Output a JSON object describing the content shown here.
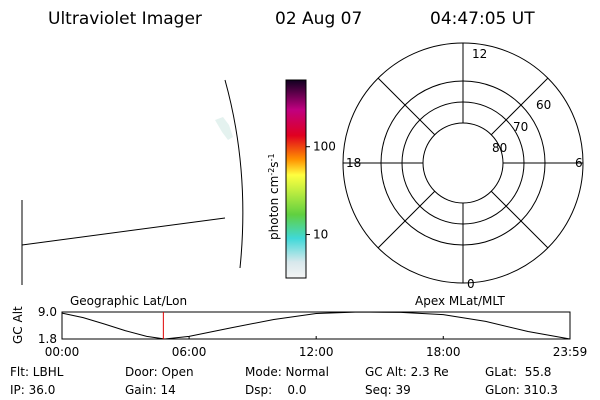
{
  "header": {
    "title": "Ultraviolet Imager",
    "date": "02 Aug 07",
    "time": "04:47:05 UT"
  },
  "colorbar": {
    "label": [
      "photon cm",
      "-2",
      "s",
      "-1"
    ],
    "lim": [
      3.2,
      575
    ],
    "ticks": [
      10,
      100
    ],
    "log": true
  },
  "polar": {
    "hour_labels": [
      "12",
      "18",
      "6",
      "0"
    ],
    "lat_labels": [
      "60",
      "70",
      "80"
    ]
  },
  "orbit": {
    "left_label": "Geographic Lat/Lon",
    "right_label": "Apex MLat/MLT",
    "y_label": "GC Alt",
    "xlim": [
      0,
      23.983
    ],
    "ylim": [
      1.8,
      9.0
    ],
    "yticks": [
      {
        "value": 9.0,
        "label": "9.0"
      },
      {
        "value": 1.8,
        "label": "1.8"
      }
    ],
    "xticks": [
      {
        "value": 0,
        "label": "00:00"
      },
      {
        "value": 6,
        "label": "06:00"
      },
      {
        "value": 12,
        "label": "12:00"
      },
      {
        "value": 18,
        "label": "18:00"
      },
      {
        "value": 23.983,
        "label": "23:59"
      }
    ],
    "current_time": 4.785,
    "x": [
      0,
      1,
      2,
      3,
      4,
      4.85,
      6,
      8,
      10,
      12,
      14,
      16,
      18,
      20,
      22,
      23.983
    ],
    "altitude": [
      8.7,
      7.5,
      5.8,
      4.0,
      2.5,
      1.8,
      2.5,
      4.8,
      7.0,
      8.6,
      9.0,
      8.9,
      8.3,
      6.5,
      3.8,
      1.8
    ]
  },
  "info": {
    "rows": [
      [
        "Flt: LBHL",
        "Door: Open",
        "Mode: Normal",
        "GC Alt: 2.3 Re",
        "GLat:  55.8"
      ],
      [
        "IP: 36.0",
        "Gain: 14",
        "Dsp:    0.0",
        "Seq: 39",
        "GLon: 310.3"
      ]
    ]
  }
}
